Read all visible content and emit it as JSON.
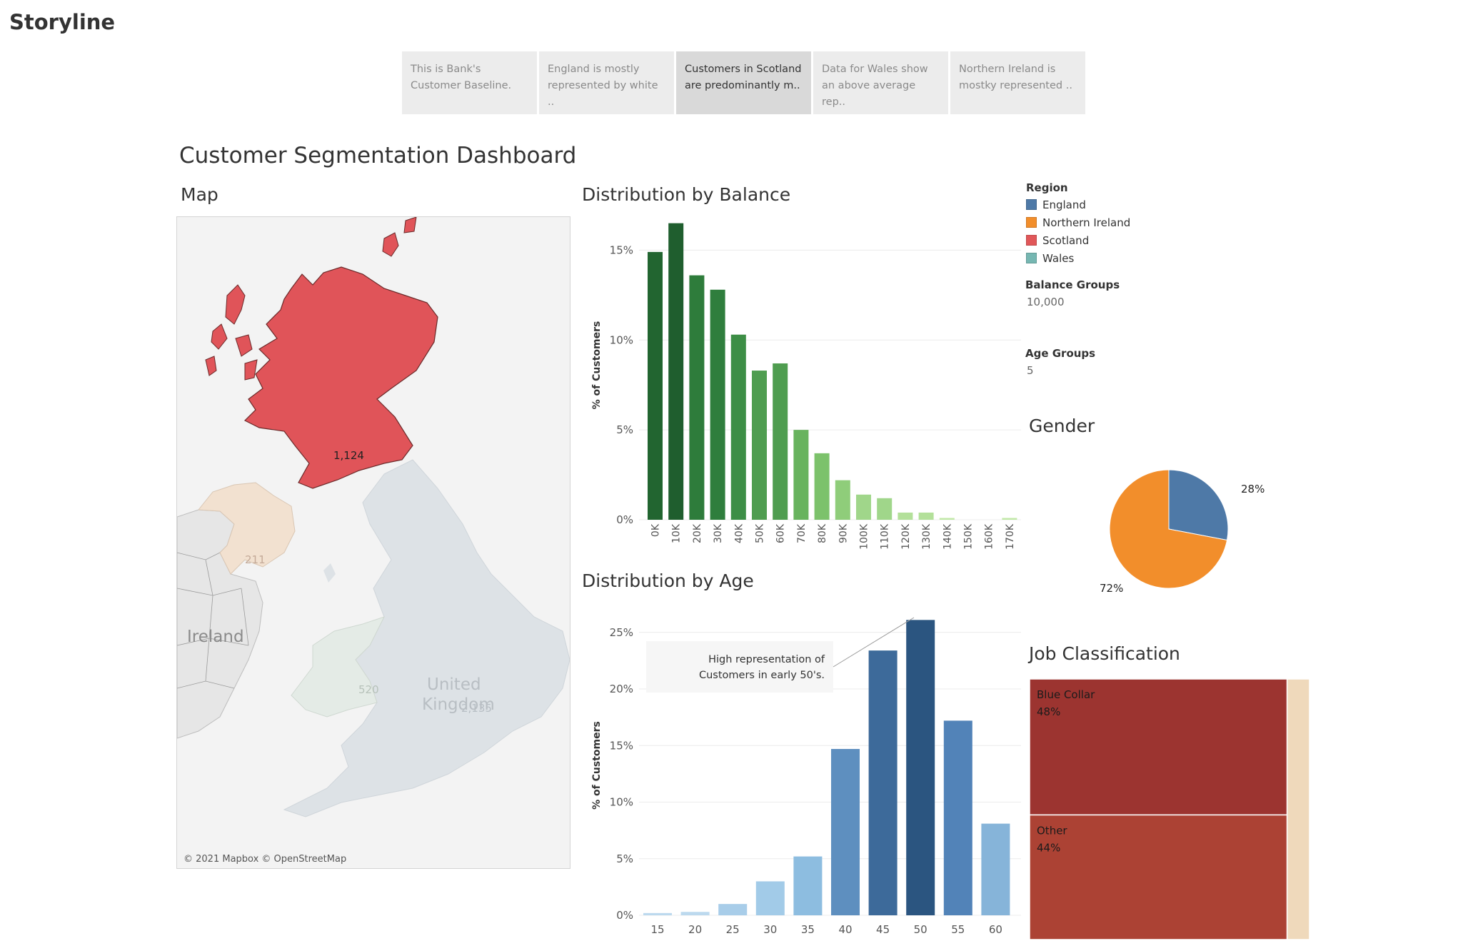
{
  "storyline": {
    "title": "Storyline",
    "points": [
      {
        "line1": "This is Bank's",
        "line2": "Customer Baseline.",
        "active": false
      },
      {
        "line1": "England is mostly",
        "line2": "represented by white ..",
        "active": false
      },
      {
        "line1": "Customers in Scotland",
        "line2": "are predominantly m..",
        "active": true
      },
      {
        "line1": "Data for Wales show",
        "line2": "an above average rep..",
        "active": false
      },
      {
        "line1": "Northern Ireland is",
        "line2": "mostky represented ..",
        "active": false
      }
    ]
  },
  "dashboard": {
    "title": "Customer Segmentation Dashboard"
  },
  "map": {
    "title": "Map",
    "attribution": "© 2021 Mapbox © OpenStreetMap",
    "labels": {
      "scotland": "1,124",
      "northern_ireland": "211",
      "wales": "520",
      "england": "2,135",
      "ireland": "Ireland",
      "uk_line1": "United",
      "uk_line2": "Kingdom"
    },
    "colors": {
      "scotland": "#e05459",
      "northern_ireland": "#f2e1d0",
      "wales": "#e4ebe6",
      "england": "#dde2e6",
      "ireland": "#e6e6e6"
    }
  },
  "legend": {
    "region_title": "Region",
    "regions": [
      {
        "name": "England",
        "color": "#4e79a7"
      },
      {
        "name": "Northern Ireland",
        "color": "#f28e2b"
      },
      {
        "name": "Scotland",
        "color": "#e15759"
      },
      {
        "name": "Wales",
        "color": "#76b7b2"
      }
    ],
    "balance_groups_title": "Balance Groups",
    "balance_groups_value": "10,000",
    "age_groups_title": "Age Groups",
    "age_groups_value": "5"
  },
  "chart_data": [
    {
      "type": "bar",
      "title": "Distribution by Balance",
      "ylabel": "% of Customers",
      "xlabel": "",
      "categories": [
        "0K",
        "10K",
        "20K",
        "30K",
        "40K",
        "50K",
        "60K",
        "70K",
        "80K",
        "90K",
        "100K",
        "110K",
        "120K",
        "130K",
        "140K",
        "150K",
        "160K",
        "170K"
      ],
      "values": [
        14.9,
        16.5,
        13.6,
        12.8,
        10.3,
        8.3,
        8.7,
        5.0,
        3.7,
        2.2,
        1.4,
        1.2,
        0.4,
        0.4,
        0.1,
        0,
        0,
        0.1
      ],
      "yticks": [
        "0%",
        "5%",
        "10%",
        "15%"
      ],
      "ylim": [
        0,
        17.2
      ],
      "colors": [
        "#226530",
        "#1f5e2e",
        "#2e7c3b",
        "#2f7e3d",
        "#3d8e46",
        "#4f9d50",
        "#4f9d50",
        "#68b35e",
        "#7cc26b",
        "#8fcd7a",
        "#a0d68a",
        "#a0d68a",
        "#b3e09a",
        "#b3e09a",
        "#c2e8a8",
        "#c2e8a8",
        "#c2e8a8",
        "#c2e8a8"
      ],
      "grid": true
    },
    {
      "type": "bar",
      "title": "Distribution by Age",
      "ylabel": "% of Customers",
      "xlabel": "",
      "categories": [
        "15",
        "20",
        "25",
        "30",
        "35",
        "40",
        "45",
        "50",
        "55",
        "60"
      ],
      "values": [
        0.2,
        0.3,
        1.0,
        3.0,
        5.2,
        14.7,
        23.4,
        26.1,
        17.2,
        8.1
      ],
      "yticks": [
        "0%",
        "5%",
        "10%",
        "15%",
        "20%",
        "25%"
      ],
      "ylim": [
        0,
        26.5
      ],
      "colors": [
        "#bcd9ee",
        "#bcd9ee",
        "#a8cde9",
        "#a2cbe8",
        "#8dbde0",
        "#5e8fbf",
        "#3d6a9a",
        "#2b5580",
        "#5283b8",
        "#86b4d9"
      ],
      "annotation": {
        "line1": "High representation of",
        "line2": "Customers in early 50's."
      },
      "grid": true
    },
    {
      "type": "pie",
      "title": "Gender",
      "values": [
        28,
        72
      ],
      "labels": [
        "28%",
        "72%"
      ],
      "colors": [
        "#4e79a7",
        "#f28e2b"
      ]
    },
    {
      "type": "treemap",
      "title": "Job Classification",
      "items": [
        {
          "name": "Blue Collar",
          "pct_label": "48%",
          "value": 48,
          "color": "#9c3430"
        },
        {
          "name": "Other",
          "pct_label": "44%",
          "value": 44,
          "color": "#ac4234"
        },
        {
          "name": "",
          "pct_label": "",
          "value": 8,
          "color": "#efd9bb"
        }
      ]
    }
  ]
}
